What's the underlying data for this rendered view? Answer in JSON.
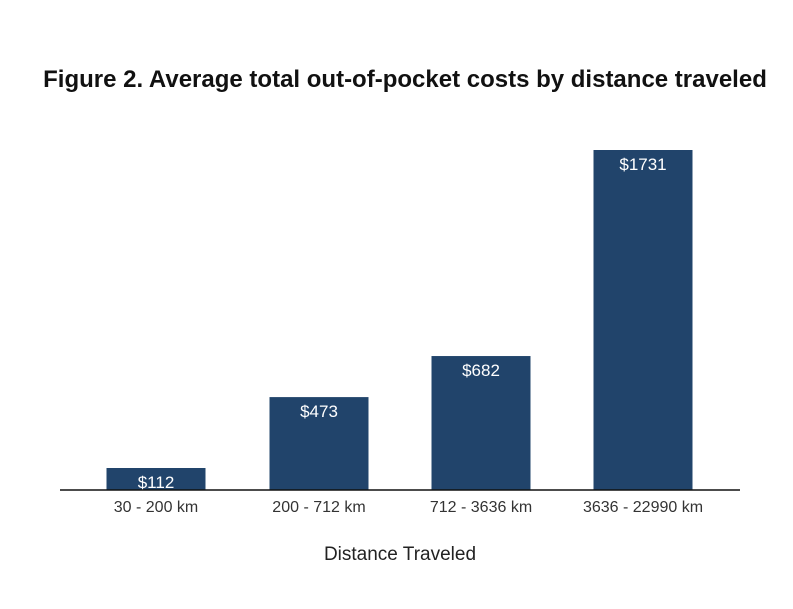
{
  "chart_data": {
    "type": "bar",
    "title": "Figure 2. Average total out-of-pocket costs by distance traveled",
    "xlabel": "Distance Traveled",
    "ylabel": "",
    "categories": [
      "30 - 200 km",
      "200 - 712 km",
      "712 - 3636 km",
      "3636 - 22990 km"
    ],
    "values": [
      112,
      473,
      682,
      1731
    ],
    "value_labels": [
      "$112",
      "$473",
      "$682",
      "$1731"
    ],
    "ylim": [
      0,
      1731
    ],
    "grid": false,
    "legend": "none",
    "bar_color": "#21446b",
    "axis_color": "#111111"
  }
}
